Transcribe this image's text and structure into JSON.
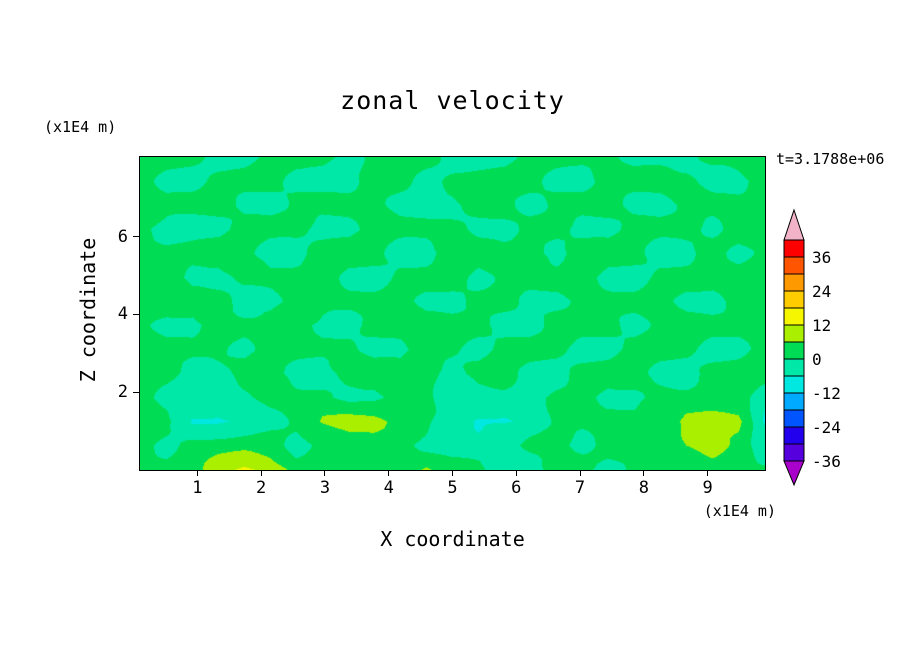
{
  "chart_data": {
    "type": "heatmap",
    "title": "zonal velocity",
    "timestamp": "t=3.1788e+06",
    "x_axis": {
      "label": "X coordinate",
      "unit": "(x1E4 m)",
      "ticks": [
        1,
        2,
        3,
        4,
        5,
        6,
        7,
        8,
        9
      ],
      "range": [
        0.1,
        9.9
      ]
    },
    "z_axis": {
      "label": "Z coordinate",
      "unit": "(x1E4 m)",
      "ticks": [
        2,
        4,
        6
      ],
      "range": [
        0,
        8.05
      ]
    },
    "colorbar": {
      "tick_labels": [
        36,
        24,
        12,
        0,
        -12,
        -24,
        -36
      ],
      "levels": [
        -36,
        -30,
        -24,
        -18,
        -12,
        -6,
        0,
        6,
        12,
        18,
        24,
        30,
        36,
        42
      ],
      "colors": [
        "#5500dd",
        "#2200ee",
        "#0055ff",
        "#00aaff",
        "#00e8e0",
        "#00e8a8",
        "#00dd55",
        "#aaee00",
        "#f6f600",
        "#ffcc00",
        "#ff9900",
        "#ff5500",
        "#ff0000"
      ],
      "under_color": "#aa00cc",
      "over_color": "#f2b3c9"
    },
    "grid_note": "estimated zonal velocity field, rows top(z=8.05) to bottom(z=0), cols left(x=0) to right(x=9.9)",
    "grid": [
      [
        2,
        2,
        2,
        -2,
        -2,
        2,
        2,
        2,
        -2,
        2,
        2,
        2,
        -2,
        -2,
        -2,
        2,
        2,
        2,
        2,
        -2,
        -2,
        -2,
        2,
        2,
        2
      ],
      [
        2,
        -2,
        -2,
        2,
        2,
        2,
        -2,
        -2,
        -2,
        2,
        2,
        -2,
        2,
        2,
        2,
        2,
        -2,
        -2,
        2,
        2,
        2,
        2,
        -2,
        -2,
        2
      ],
      [
        2,
        2,
        2,
        2,
        -2,
        -2,
        2,
        2,
        2,
        2,
        -2,
        -2,
        -2,
        2,
        2,
        -2,
        2,
        2,
        2,
        -2,
        -2,
        2,
        2,
        2,
        2
      ],
      [
        2,
        -2,
        -2,
        -2,
        2,
        2,
        2,
        -2,
        -2,
        2,
        2,
        2,
        2,
        -2,
        -2,
        2,
        2,
        -2,
        -2,
        2,
        2,
        2,
        -2,
        2,
        2
      ],
      [
        2,
        2,
        2,
        2,
        2,
        -2,
        -2,
        2,
        2,
        2,
        -2,
        -2,
        2,
        2,
        2,
        2,
        -2,
        2,
        2,
        2,
        -2,
        -2,
        2,
        -2,
        2
      ],
      [
        2,
        2,
        -2,
        -2,
        2,
        2,
        2,
        2,
        -2,
        -2,
        2,
        2,
        2,
        -2,
        2,
        2,
        2,
        2,
        -2,
        -2,
        2,
        2,
        2,
        2,
        2
      ],
      [
        2,
        2,
        2,
        2,
        -2,
        -2,
        2,
        2,
        2,
        2,
        2,
        -2,
        -2,
        2,
        2,
        -2,
        -2,
        2,
        2,
        2,
        2,
        -2,
        -2,
        2,
        2
      ],
      [
        2,
        -2,
        -2,
        2,
        2,
        2,
        2,
        -2,
        -2,
        2,
        2,
        2,
        2,
        2,
        -2,
        -2,
        2,
        2,
        2,
        -2,
        2,
        2,
        2,
        2,
        2
      ],
      [
        2,
        2,
        2,
        2,
        -2,
        2,
        2,
        2,
        2,
        -2,
        -2,
        2,
        2,
        -2,
        2,
        2,
        2,
        -2,
        -2,
        2,
        2,
        2,
        -2,
        -2,
        2
      ],
      [
        2,
        2,
        -2,
        -2,
        2,
        2,
        -2,
        -2,
        2,
        2,
        2,
        2,
        -2,
        2,
        2,
        -2,
        -2,
        2,
        2,
        2,
        -2,
        -2,
        2,
        2,
        2
      ],
      [
        2,
        -2,
        -3,
        -3,
        -2,
        2,
        2,
        2,
        -2,
        -2,
        2,
        2,
        -3,
        -3,
        -2,
        -2,
        2,
        2,
        -2,
        -2,
        2,
        2,
        2,
        2,
        -4
      ],
      [
        2,
        2,
        -6,
        -7,
        -6,
        -3,
        2,
        7,
        9,
        8,
        3,
        2,
        -4,
        -7,
        -7,
        -5,
        2,
        2,
        2,
        2,
        3,
        8,
        9,
        7,
        -7
      ],
      [
        2,
        -2,
        2,
        3,
        4,
        3,
        -3,
        2,
        3,
        3,
        2,
        -2,
        -3,
        -4,
        -3,
        2,
        2,
        -2,
        2,
        2,
        2,
        6,
        8,
        5,
        -5
      ],
      [
        2,
        2,
        3,
        10,
        14,
        10,
        3,
        2,
        2,
        2,
        2,
        6,
        2,
        2,
        -3,
        -3,
        2,
        2,
        -2,
        2,
        2,
        2,
        3,
        2,
        2
      ]
    ]
  }
}
